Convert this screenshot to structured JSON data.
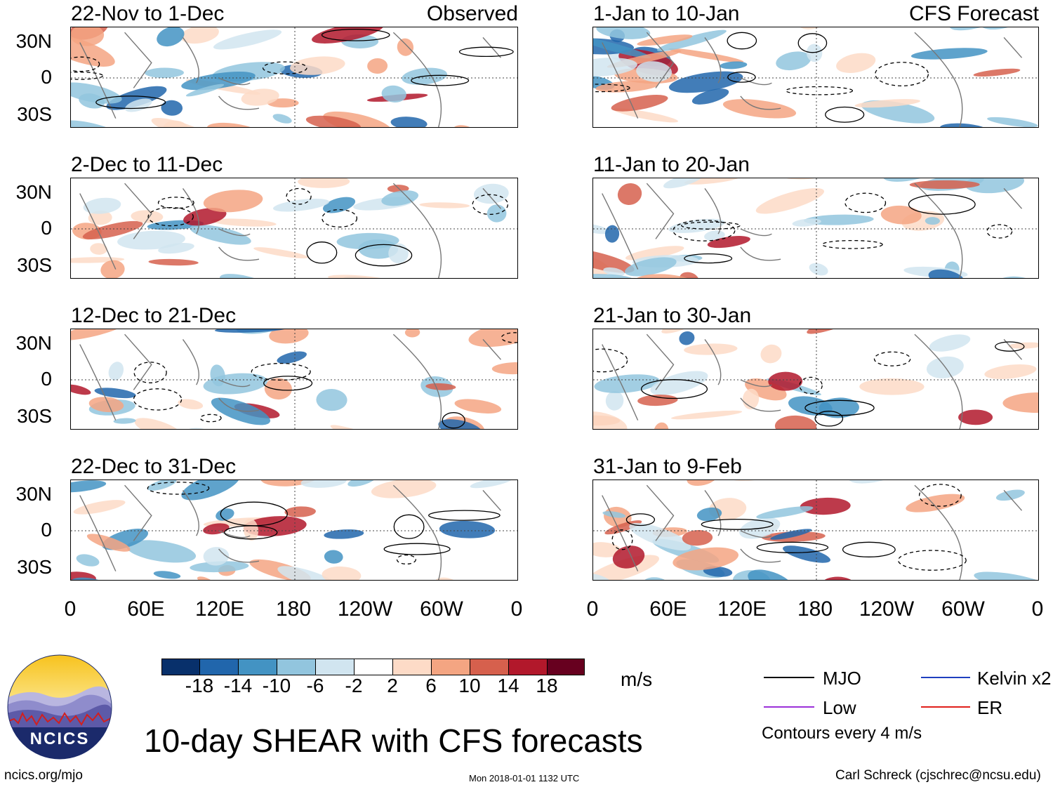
{
  "title": "10-day SHEAR with CFS forecasts",
  "panels_left": [
    {
      "title": "22-Nov to 1-Dec",
      "label": "Observed"
    },
    {
      "title": "2-Dec to 11-Dec",
      "label": ""
    },
    {
      "title": "12-Dec to 21-Dec",
      "label": ""
    },
    {
      "title": "22-Dec to 31-Dec",
      "label": ""
    }
  ],
  "panels_right": [
    {
      "title": "1-Jan to 10-Jan",
      "label": "CFS Forecast"
    },
    {
      "title": "11-Jan to 20-Jan",
      "label": ""
    },
    {
      "title": "21-Jan to 30-Jan",
      "label": ""
    },
    {
      "title": "31-Jan to 9-Feb",
      "label": ""
    }
  ],
  "lat_labels": [
    "30N",
    "0",
    "30S"
  ],
  "lon_labels": [
    "0",
    "60E",
    "120E",
    "180",
    "120W",
    "60W",
    "0"
  ],
  "colorbar": {
    "unit": "m/s",
    "ticks": [
      "-18",
      "-14",
      "-10",
      "-6",
      "-2",
      "2",
      "6",
      "10",
      "14",
      "18"
    ],
    "colors": [
      "#08306b",
      "#2166ac",
      "#4393c3",
      "#92c5de",
      "#d1e5f0",
      "#ffffff",
      "#fddbc7",
      "#f4a582",
      "#d6604d",
      "#b2182b",
      "#67001f"
    ]
  },
  "legend": {
    "items": [
      {
        "label": "MJO",
        "color": "#000000"
      },
      {
        "label": "Kelvin x2",
        "color": "#1f3fbf"
      },
      {
        "label": "Low",
        "color": "#9b30d9"
      },
      {
        "label": "ER",
        "color": "#e0201b"
      }
    ],
    "note": "Contours every 4 m/s"
  },
  "logo": {
    "text": "NCICS"
  },
  "footer": {
    "left": "ncics.org/mjo",
    "center": "Mon 2018-01-01 1132 UTC",
    "right": "Carl Schreck (cjschrec@ncsu.edu)"
  }
}
